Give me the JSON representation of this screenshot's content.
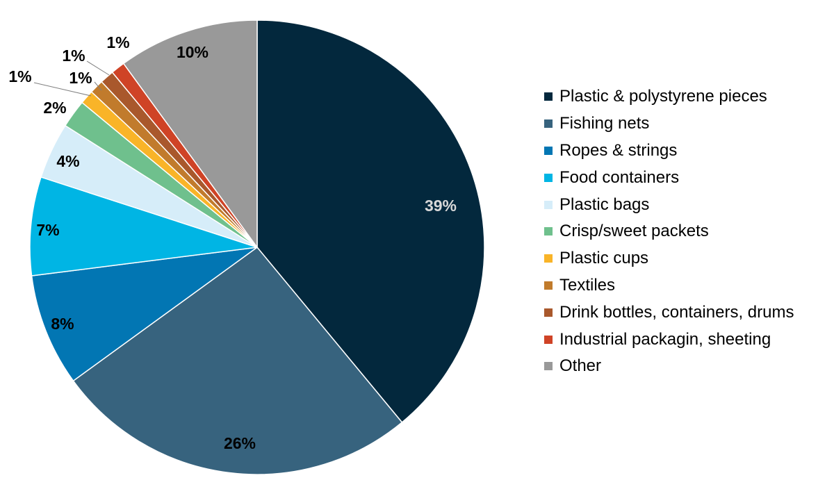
{
  "chart_data": {
    "type": "pie",
    "title": "",
    "start_angle_deg": 0,
    "direction": "clockwise",
    "legend_position": "right",
    "slices": [
      {
        "label": "Plastic & polystyrene pieces",
        "value": 39,
        "display": "39%",
        "color": "#03283d",
        "label_color": "#d9d9d9"
      },
      {
        "label": "Fishing nets",
        "value": 26,
        "display": "26%",
        "color": "#37637e",
        "label_color": "#000000"
      },
      {
        "label": "Ropes & strings",
        "value": 8,
        "display": "8%",
        "color": "#0276b3",
        "label_color": "#000000"
      },
      {
        "label": "Food containers",
        "value": 7,
        "display": "7%",
        "color": "#00b5e4",
        "label_color": "#000000"
      },
      {
        "label": "Plastic bags",
        "value": 4,
        "display": "4%",
        "color": "#d6edf9",
        "label_color": "#000000"
      },
      {
        "label": "Crisp/sweet packets",
        "value": 2,
        "display": "2%",
        "color": "#6fc08d",
        "label_color": "#000000"
      },
      {
        "label": "Plastic cups",
        "value": 1,
        "display": "1%",
        "color": "#f9b428",
        "label_color": "#000000"
      },
      {
        "label": "Textiles",
        "value": 1,
        "display": "1%",
        "color": "#c17b2c",
        "label_color": "#000000"
      },
      {
        "label": "Drink bottles, containers, drums",
        "value": 1,
        "display": "1%",
        "color": "#a9582c",
        "label_color": "#000000"
      },
      {
        "label": "Industrial packagin, sheeting",
        "value": 1,
        "display": "1%",
        "color": "#cf4326",
        "label_color": "#000000"
      },
      {
        "label": "Other",
        "value": 10,
        "display": "10%",
        "color": "#999999",
        "label_color": "#000000"
      }
    ]
  }
}
